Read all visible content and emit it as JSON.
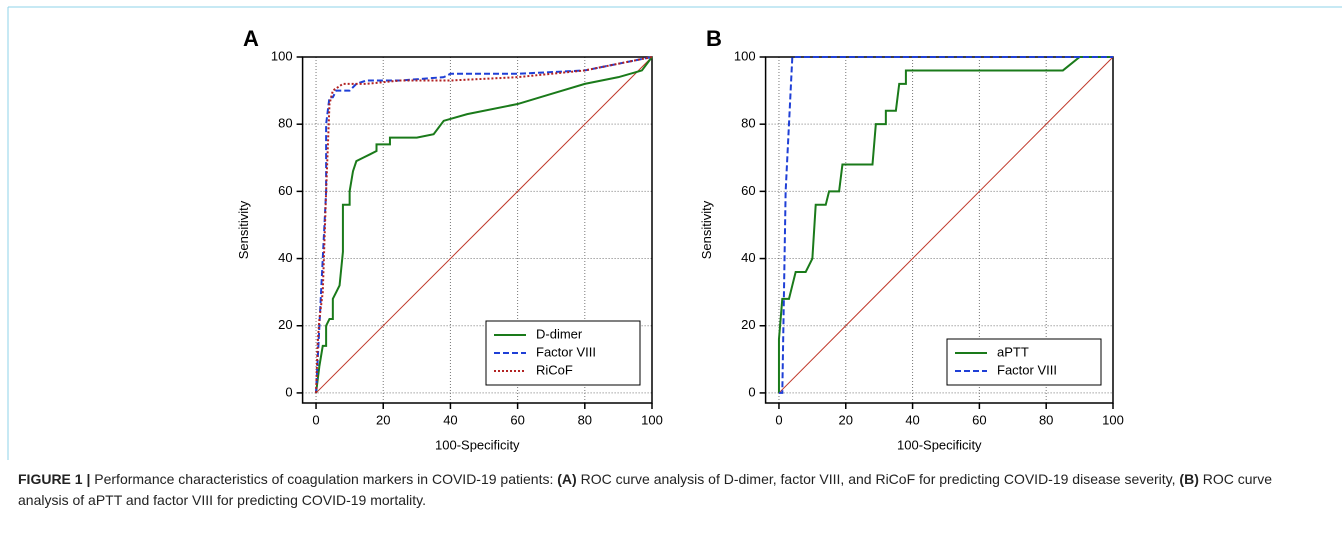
{
  "chart_data": [
    {
      "type": "line",
      "panel_label": "A",
      "xlabel": "100-Specificity",
      "ylabel": "Sensitivity",
      "xlim": [
        -4,
        100
      ],
      "ylim": [
        -3,
        100
      ],
      "xticks": [
        0,
        20,
        40,
        60,
        80,
        100
      ],
      "yticks": [
        0,
        20,
        40,
        60,
        80,
        100
      ],
      "grid": true,
      "legend": "lower right",
      "reference_line": {
        "x": [
          0,
          100
        ],
        "y": [
          0,
          100
        ],
        "color": "#c0392b"
      },
      "series": [
        {
          "name": "D-dimer",
          "color": "#1a7a1a",
          "dash": "solid",
          "x": [
            0,
            1,
            2,
            3,
            3,
            4,
            5,
            5,
            6,
            7,
            8,
            8,
            10,
            10,
            11,
            12,
            14,
            16,
            18,
            18,
            22,
            22,
            30,
            35,
            38,
            45,
            60,
            70,
            80,
            90,
            97,
            100
          ],
          "y": [
            0,
            8,
            14,
            14,
            20,
            22,
            22,
            28,
            30,
            32,
            42,
            56,
            56,
            60,
            66,
            69,
            70,
            71,
            72,
            74,
            74,
            76,
            76,
            77,
            81,
            83,
            86,
            89,
            92,
            94,
            96,
            100
          ]
        },
        {
          "name": "Factor VIII",
          "color": "#1f3fd6",
          "dash": "dashed",
          "x": [
            0,
            0.5,
            1,
            2,
            3,
            3,
            4,
            5,
            6,
            10,
            12,
            15,
            25,
            38,
            40,
            60,
            80,
            90,
            95,
            100
          ],
          "y": [
            0,
            10,
            20,
            40,
            60,
            80,
            88,
            88,
            90,
            90,
            92,
            93,
            93,
            94,
            95,
            95,
            96,
            98,
            99,
            100
          ]
        },
        {
          "name": "RiCoF",
          "color": "#b22222",
          "dash": "dotted",
          "x": [
            0,
            0.5,
            1,
            2,
            3,
            4,
            5,
            8,
            15,
            25,
            40,
            60,
            80,
            90,
            100
          ],
          "y": [
            0,
            15,
            22,
            30,
            60,
            86,
            90,
            92,
            92,
            93,
            93,
            94,
            96,
            98,
            100
          ]
        }
      ]
    },
    {
      "type": "line",
      "panel_label": "B",
      "xlabel": "100-Specificity",
      "ylabel": "Sensitivity",
      "xlim": [
        -4,
        100
      ],
      "ylim": [
        -3,
        100
      ],
      "xticks": [
        0,
        20,
        40,
        60,
        80,
        100
      ],
      "yticks": [
        0,
        20,
        40,
        60,
        80,
        100
      ],
      "grid": true,
      "legend": "lower right",
      "reference_line": {
        "x": [
          0,
          100
        ],
        "y": [
          0,
          100
        ],
        "color": "#c0392b"
      },
      "series": [
        {
          "name": "aPTT",
          "color": "#1a7a1a",
          "dash": "solid",
          "x": [
            0,
            0,
            1,
            3,
            4,
            5,
            8,
            9,
            10,
            11,
            14,
            15,
            18,
            19,
            28,
            29,
            32,
            32,
            35,
            36,
            38,
            38,
            85,
            90,
            100
          ],
          "y": [
            0,
            16,
            28,
            28,
            32,
            36,
            36,
            38,
            40,
            56,
            56,
            60,
            60,
            68,
            68,
            80,
            80,
            84,
            84,
            92,
            92,
            96,
            96,
            100,
            100
          ]
        },
        {
          "name": "Factor VIII",
          "color": "#1f3fd6",
          "dash": "dashed",
          "x": [
            0,
            1,
            2,
            3,
            4,
            100
          ],
          "y": [
            0,
            0,
            60,
            80,
            100,
            100
          ]
        }
      ]
    }
  ],
  "figure_caption": [
    {
      "text": "FIGURE 1 |",
      "bold": true
    },
    {
      "text": " Performance characteristics of coagulation markers in COVID-19 patients: ",
      "bold": false
    },
    {
      "text": "(A)",
      "bold": true
    },
    {
      "text": " ROC curve analysis of D-dimer, factor VIII, and RiCoF for predicting COVID-19 disease severity, ",
      "bold": false
    },
    {
      "text": "(B)",
      "bold": true
    },
    {
      "text": " ROC curve analysis of aPTT and factor VIII for predicting COVID-19 mortality.",
      "bold": false
    }
  ]
}
